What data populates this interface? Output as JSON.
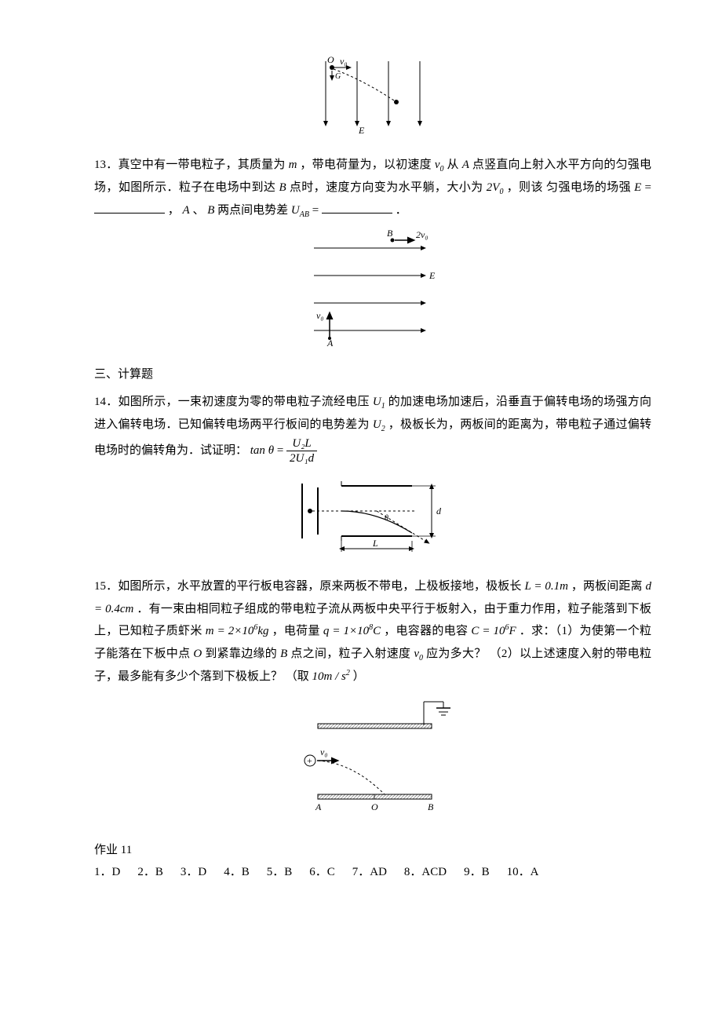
{
  "fig12": {
    "labels": {
      "O": "O",
      "v0": "v₀",
      "G": "G",
      "E": "E"
    },
    "arrow_color": "#000000",
    "field_lines": 4,
    "line_width": 1
  },
  "q13": {
    "prefix": "13．真空中有一带电粒子，其质量为",
    "m": "m",
    "seg1": " ，带电荷量为，以初速度",
    "v0": "v",
    "v0_sub": "0",
    "seg2": "从 ",
    "A": "A",
    "seg3": " 点竖直向上射入水平方向的匀强电场，如图所示．粒子在电场中到达 ",
    "B": "B",
    "seg4": " 点时，速度方向变为水平躺，大小为",
    "twoV0": "2V",
    "twoV0_sub": "0",
    "seg5": "，则该  匀强电场的场强 ",
    "E": "E",
    "eq": " = ",
    "seg6": "，  ",
    "seg7": " 、 ",
    "seg8": " 两点间电势差",
    "UAB": "U",
    "UAB_sub": "AB",
    "seg9": " = ",
    "period": "．"
  },
  "fig13": {
    "labels": {
      "B": "B",
      "twoV0": "2v₀",
      "E": "E",
      "v0": "v₀",
      "A": "A"
    },
    "arrow_color": "#000000",
    "field_lines": 4,
    "line_width": 1
  },
  "section3": "三、计算题",
  "q14": {
    "prefix": "14．如图所示，一束初速度为零的带电粒子流经电压",
    "U1": "U",
    "U1_sub": "1",
    "seg1": "的加速电场加速后，沿垂直于偏转电场的场强方向进入偏转电场．已知偏转电场两平行板间的电势差为",
    "U2": "U",
    "U2_sub": "2",
    "seg2": "，极板长为，两板间的距离为，带电粒子通过偏转电场时的偏转角为．试证明： ",
    "tan": "tan",
    "theta": "θ",
    "eq": " = ",
    "frac_num": "U₂L",
    "frac_den": "2U₁d"
  },
  "fig14": {
    "labels": {
      "d": "d",
      "L": "L"
    },
    "plate_color": "#000000",
    "line_width": 1
  },
  "q15": {
    "line1_pre": "15．如图所示，水平放置的平行板电容器，原来两板不带电，上极板接地，极板长",
    "L_expr": "L = 0.1m",
    "line1_post": "，两板间距离",
    "d_expr": "d = 0.4cm",
    "line2_pre": " ．有一束由相同粒子组成的带电粒子流从两板中央平行于板射入，由于重力作用，粒子能落到下板上，已知粒子质虾米",
    "m_expr_pre": "m = 2×10",
    "m_exp": "6",
    "m_unit": "kg",
    "seg_q": "，电荷量",
    "q_expr_pre": "q = 1×10",
    "q_exp": "8",
    "q_unit": "C",
    "seg_cap": "，电容器的电容",
    "C_expr_pre": "C = 10",
    "C_exp": "6",
    "C_unit": "F",
    "seg_ask": " ．求：（1）为使第一个粒子能落在下板中点",
    "O": "O",
    "seg_toB": "到紧靠边缘的",
    "B": "B",
    "seg_between": "点之间，粒子入射速度",
    "v0": "v",
    "v0_sub": "0",
    "seg_howbig": "应为多大？ （2）以上述速度入射的带电粒子，最多能有多少个落到下极板上？ （取",
    "g_pre": "10m / s",
    "g_exp": "2",
    "close": "）"
  },
  "fig15": {
    "labels": {
      "v0": "v₀",
      "A": "A",
      "O": "O",
      "B": "B",
      "plus": "+"
    },
    "plate_color": "#000000",
    "hatch_color": "#888888"
  },
  "answers": {
    "title": "作业   11",
    "items": [
      {
        "n": "1．",
        "a": "D"
      },
      {
        "n": "2．",
        "a": "B"
      },
      {
        "n": "3．",
        "a": "D"
      },
      {
        "n": "4．",
        "a": "B"
      },
      {
        "n": "5．",
        "a": "B"
      },
      {
        "n": "6．",
        "a": "C"
      },
      {
        "n": "7．",
        "a": "AD"
      },
      {
        "n": "8．",
        "a": "ACD"
      },
      {
        "n": "9．",
        "a": "B"
      },
      {
        "n": "10．",
        "a": "A"
      }
    ]
  }
}
